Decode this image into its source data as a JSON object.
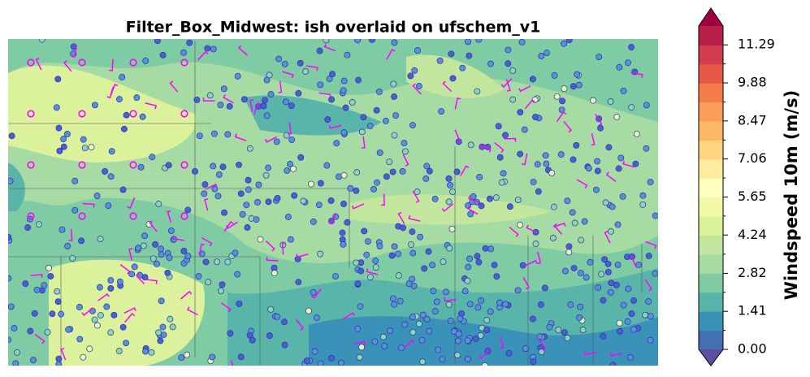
{
  "title": "Filter_Box_Midwest: ish overlaid on ufschem_v1",
  "colorbar": {
    "label": "Windspeed 10m (m/s)",
    "ylim": [
      0,
      11.99
    ],
    "yticks": [
      {
        "value": 0,
        "label": "0.00"
      },
      {
        "value": 1.41,
        "label": "1.41"
      },
      {
        "value": 2.82,
        "label": "2.82"
      },
      {
        "value": 4.24,
        "label": "4.24"
      },
      {
        "value": 5.65,
        "label": "5.65"
      },
      {
        "value": 7.06,
        "label": "7.06"
      },
      {
        "value": 8.47,
        "label": "8.47"
      },
      {
        "value": 9.88,
        "label": "9.88"
      },
      {
        "value": 11.29,
        "label": "11.29"
      }
    ],
    "colors": [
      "#4470b1",
      "#3b92b8",
      "#59b4aa",
      "#7ecba4",
      "#a6dba4",
      "#c2e69e",
      "#dcf19b",
      "#f2f9a8",
      "#ffffbe",
      "#feeb9d",
      "#fed481",
      "#fdb866",
      "#fb9c58",
      "#f57d4a",
      "#e65848",
      "#d23c4e",
      "#b81f48"
    ],
    "under_color": "#5e4fa2",
    "over_color": "#9e0142"
  }
}
